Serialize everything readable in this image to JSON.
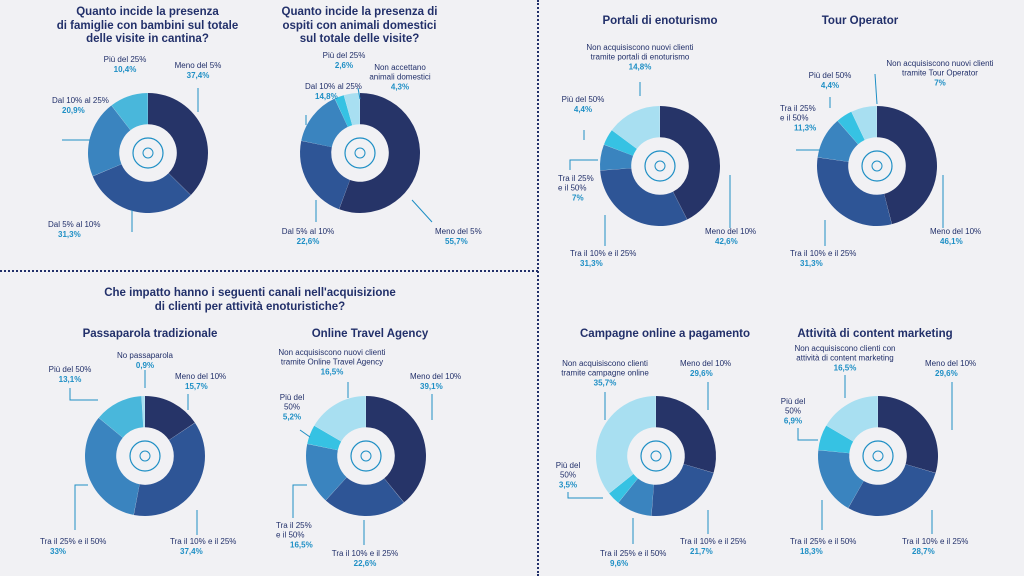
{
  "colors": {
    "c1": "#263468",
    "c2": "#2e5596",
    "c3": "#3a84bf",
    "c4": "#49b7db",
    "c5": "#a8dff1",
    "c6": "#36c2e3",
    "leader": "#1e8fc5"
  },
  "section_title": "Che impatto hanno i seguenti canali nell'acquisizione\ndi clienti per attività enoturistiche?",
  "chart_data": [
    {
      "id": "famiglie",
      "type": "pie",
      "donut": true,
      "icon": "family-icon",
      "title": "Quanto incide la presenza\ndi famiglie con bambini sul totale\ndelle visite in cantina?",
      "slices": [
        {
          "label": "Meno del 5%",
          "display": "37,4%",
          "value": 37.4
        },
        {
          "label": "Dal 5% al 10%",
          "display": "31,3%",
          "value": 31.3
        },
        {
          "label": "Dal 10% al 25%",
          "display": "20,9%",
          "value": 20.9
        },
        {
          "label": "Più del 25%",
          "display": "10,4%",
          "value": 10.4
        }
      ]
    },
    {
      "id": "animali",
      "type": "pie",
      "donut": true,
      "icon": "paw-icon",
      "title": "Quanto incide la presenza di\nospiti con animali domestici\nsul totale delle visite?",
      "slices": [
        {
          "label": "Meno del 5%",
          "display": "55,7%",
          "value": 55.7
        },
        {
          "label": "Dal 5% al 10%",
          "display": "22,6%",
          "value": 22.6
        },
        {
          "label": "Dal 10% al 25%",
          "display": "14,8%",
          "value": 14.8
        },
        {
          "label": "Più del 25%",
          "display": "2,6%",
          "value": 2.6
        },
        {
          "label": "Non accettano\nanimali domestici",
          "display": "4,3%",
          "value": 4.3
        }
      ]
    },
    {
      "id": "portali",
      "type": "pie",
      "donut": true,
      "icon": "globe-laptop-icon",
      "title": "Portali di enoturismo",
      "slices": [
        {
          "label": "Meno del 10%",
          "display": "42,6%",
          "value": 42.6
        },
        {
          "label": "Tra il 10% e il 25%",
          "display": "31,3%",
          "value": 31.3
        },
        {
          "label": "Tra il 25%\ne il 50%",
          "display": "7%",
          "value": 7
        },
        {
          "label": "Più del 50%",
          "display": "4,4%",
          "value": 4.4
        },
        {
          "label": "Non acquisiscono nuovi clienti\ntramite portali di enoturismo",
          "display": "14,8%",
          "value": 14.8
        }
      ]
    },
    {
      "id": "tour",
      "type": "pie",
      "donut": true,
      "icon": "travel-icon",
      "title": "Tour Operator",
      "slices": [
        {
          "label": "Meno del 10%",
          "display": "46,1%",
          "value": 46.1
        },
        {
          "label": "Tra il 10% e il 25%",
          "display": "31,3%",
          "value": 31.3
        },
        {
          "label": "Tra il 25%\ne il 50%",
          "display": "11,3%",
          "value": 11.3
        },
        {
          "label": "Più del 50%",
          "display": "4,4%",
          "value": 4.4
        },
        {
          "label": "Non acquisiscono nuovi clienti\ntramite Tour Operator",
          "display": "7%",
          "value": 7
        }
      ]
    },
    {
      "id": "passaparola",
      "type": "pie",
      "donut": true,
      "icon": "chat-icon",
      "title": "Passaparola tradizionale",
      "slices": [
        {
          "label": "Meno del 10%",
          "display": "15,7%",
          "value": 15.7
        },
        {
          "label": "Tra il 10% e il 25%",
          "display": "37,4%",
          "value": 37.4
        },
        {
          "label": "Tra il 25% e il 50%",
          "display": "33%",
          "value": 33
        },
        {
          "label": "Più del 50%",
          "display": "13,1%",
          "value": 13.1
        },
        {
          "label": "No passaparola",
          "display": "0,9%",
          "value": 0.9
        }
      ]
    },
    {
      "id": "ota",
      "type": "pie",
      "donut": true,
      "icon": "mobile-booking-icon",
      "title": "Online Travel Agency",
      "slices": [
        {
          "label": "Meno del 10%",
          "display": "39,1%",
          "value": 39.1
        },
        {
          "label": "Tra il 10% e il 25%",
          "display": "22,6%",
          "value": 22.6
        },
        {
          "label": "Tra il 25%\ne il 50%",
          "display": "16,5%",
          "value": 16.5
        },
        {
          "label": "Più del\n50%",
          "display": "5,2%",
          "value": 5.2
        },
        {
          "label": "Non acquisiscono nuovi clienti\ntramite Online Travel Agency",
          "display": "16,5%",
          "value": 16.5
        }
      ]
    },
    {
      "id": "campagne",
      "type": "pie",
      "donut": true,
      "icon": "social-media-icon",
      "title": "Campagne online a pagamento",
      "slices": [
        {
          "label": "Meno del 10%",
          "display": "29,6%",
          "value": 29.6
        },
        {
          "label": "Tra il 10% e il 25%",
          "display": "21,7%",
          "value": 21.7
        },
        {
          "label": "Tra il 25% e il 50%",
          "display": "9,6%",
          "value": 9.6
        },
        {
          "label": "Più del\n50%",
          "display": "3,5%",
          "value": 3.5
        },
        {
          "label": "Non acquisiscono clienti\ntramite campagne online",
          "display": "35,7%",
          "value": 35.7
        }
      ]
    },
    {
      "id": "content",
      "type": "pie",
      "donut": true,
      "icon": "content-marketing-icon",
      "title": "Attività di content marketing",
      "slices": [
        {
          "label": "Meno del 10%",
          "display": "29,6%",
          "value": 29.6
        },
        {
          "label": "Tra il 10% e il 25%",
          "display": "28,7%",
          "value": 28.7
        },
        {
          "label": "Tra il 25% e il 50%",
          "display": "18,3%",
          "value": 18.3
        },
        {
          "label": "Più del\n50%",
          "display": "6,9%",
          "value": 6.9
        },
        {
          "label": "Non acquisiscono clienti con\nattività di content marketing",
          "display": "16,5%",
          "value": 16.5
        }
      ]
    }
  ]
}
